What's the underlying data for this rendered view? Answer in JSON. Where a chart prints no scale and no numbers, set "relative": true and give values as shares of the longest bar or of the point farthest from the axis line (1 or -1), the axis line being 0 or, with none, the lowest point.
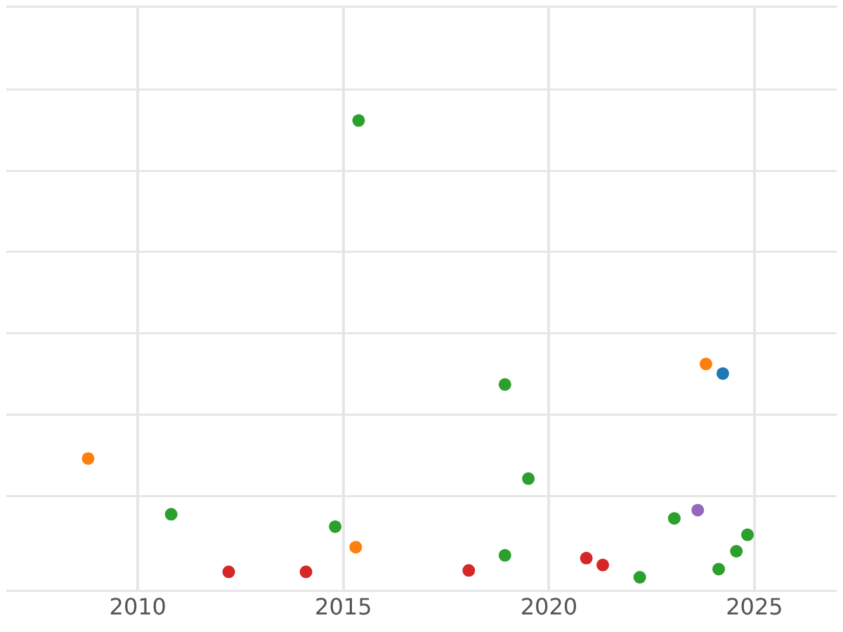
{
  "chart_data": {
    "type": "scatter",
    "relative": true,
    "xlim": [
      2006.8,
      2027
    ],
    "xticks": [
      2010,
      2015,
      2020,
      2025
    ],
    "grid": true,
    "legend": false,
    "marker": "circle",
    "series": [
      {
        "color": "#2ca02c",
        "x": [
          2015.37,
          2010.81,
          2014.8,
          2018.93,
          2018.93,
          2019.5,
          2022.21,
          2023.05,
          2024.13,
          2024.56,
          2024.83
        ],
        "values": [
          1,
          0.138,
          0.111,
          0.422,
          0.048,
          0.216,
          0,
          0.129,
          0.018,
          0.057,
          0.093
        ]
      },
      {
        "color": "#ff7f0e",
        "x": [
          2008.79,
          2015.3,
          2023.82
        ],
        "values": [
          0.26,
          0.066,
          0.467
        ]
      },
      {
        "color": "#d62728",
        "x": [
          2012.21,
          2014.09,
          2018.05,
          2020.91,
          2021.31
        ],
        "values": [
          0.012,
          0.012,
          0.015,
          0.042,
          0.027
        ]
      },
      {
        "color": "#9467bd",
        "x": [
          2023.62
        ],
        "values": [
          0.147
        ]
      },
      {
        "color": "#1f77b4",
        "x": [
          2024.23
        ],
        "values": [
          0.446
        ]
      }
    ]
  }
}
